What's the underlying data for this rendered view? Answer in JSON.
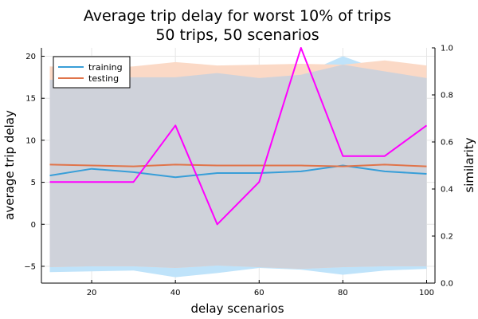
{
  "chart_data": {
    "type": "line",
    "title": [
      "Average trip delay for worst 10% of trips",
      "50 trips, 50 scenarios"
    ],
    "xlabel": "delay scenarios",
    "ylabel": "average trip delay",
    "y2label": "similarity",
    "xlim": [
      8,
      102
    ],
    "ylim": [
      -7,
      21
    ],
    "y2lim": [
      0,
      1.0
    ],
    "xticks": [
      20,
      40,
      60,
      80,
      100
    ],
    "yticks": [
      -5,
      0,
      5,
      10,
      15,
      20
    ],
    "y2ticks": [
      0.0,
      0.2,
      0.4,
      0.6,
      0.8,
      1.0
    ],
    "y2ticklabels": [
      "0.0",
      "0.2",
      "0.4",
      "0.6",
      "0.8",
      "1.0"
    ],
    "grid": true,
    "legend_position": "top-left",
    "x": [
      10,
      20,
      30,
      40,
      50,
      60,
      70,
      80,
      90,
      100
    ],
    "series": [
      {
        "name": "training",
        "axis": "left",
        "color": "#389ed8",
        "values": [
          5.8,
          6.6,
          6.2,
          5.6,
          6.1,
          6.1,
          6.3,
          7.0,
          6.3,
          6.0
        ],
        "band_upper": [
          17.2,
          17.4,
          17.5,
          17.5,
          18.0,
          17.4,
          17.8,
          20.0,
          18.2,
          17.4
        ],
        "band_lower": [
          -5.7,
          -5.6,
          -5.5,
          -6.3,
          -5.8,
          -5.2,
          -5.4,
          -6.0,
          -5.5,
          -5.3
        ],
        "band_color": "#bfe3fa"
      },
      {
        "name": "testing",
        "axis": "left",
        "color": "#e0744a",
        "values": [
          7.1,
          7.0,
          6.9,
          7.1,
          7.0,
          7.0,
          7.0,
          6.9,
          7.1,
          6.9
        ],
        "band_upper": [
          18.8,
          18.5,
          18.8,
          19.3,
          18.9,
          19.0,
          19.1,
          19.0,
          19.5,
          18.9
        ],
        "band_lower": [
          -5.1,
          -5.0,
          -5.0,
          -5.2,
          -4.9,
          -5.1,
          -5.3,
          -5.1,
          -5.0,
          -5.0
        ],
        "band_color": "#fbd9c6"
      },
      {
        "axis": "right",
        "color": "#ff00ff",
        "values": [
          0.43,
          0.43,
          0.43,
          0.67,
          0.25,
          0.43,
          1.0,
          0.54,
          0.54,
          0.67
        ]
      }
    ],
    "overlap_color": "#cfd2da"
  }
}
